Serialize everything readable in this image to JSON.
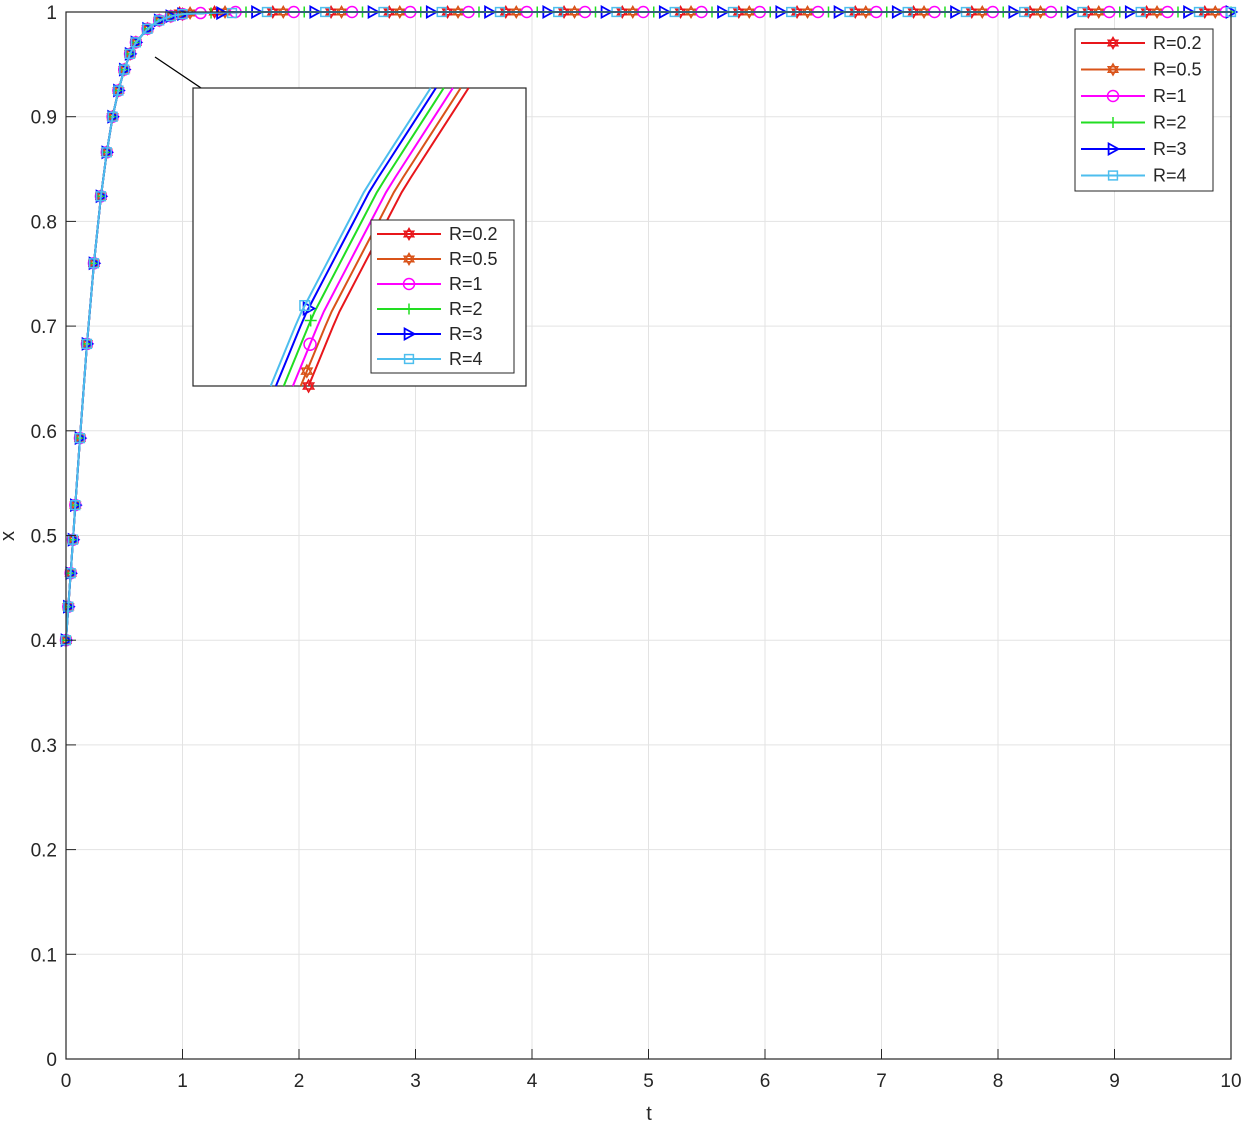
{
  "chart_data": {
    "type": "line",
    "title": "",
    "xlabel": "t",
    "ylabel": "x",
    "xlim": [
      0,
      10
    ],
    "ylim": [
      0,
      1
    ],
    "grid": true,
    "legend_position": "top-right",
    "xticks": [
      "0",
      "1",
      "2",
      "3",
      "4",
      "5",
      "6",
      "7",
      "8",
      "9",
      "10"
    ],
    "yticks": [
      "0",
      "0.1",
      "0.2",
      "0.3",
      "0.4",
      "0.5",
      "0.6",
      "0.7",
      "0.8",
      "0.9",
      "1"
    ],
    "t": [
      0,
      0.02,
      0.04,
      0.06,
      0.08,
      0.12,
      0.18,
      0.24,
      0.3,
      0.35,
      0.4,
      0.45,
      0.5,
      0.55,
      0.6,
      0.7,
      0.8,
      0.9,
      1.0,
      1.2,
      1.5,
      2,
      2.5,
      3,
      3.5,
      4,
      4.5,
      5,
      5.5,
      6,
      6.5,
      7,
      7.5,
      8,
      8.5,
      9,
      9.5,
      10
    ],
    "x": [
      0.4,
      0.432,
      0.464,
      0.496,
      0.529,
      0.593,
      0.683,
      0.76,
      0.824,
      0.866,
      0.9,
      0.925,
      0.945,
      0.96,
      0.971,
      0.984,
      0.992,
      0.996,
      0.998,
      0.999,
      1,
      1,
      1,
      1,
      1,
      1,
      1,
      1,
      1,
      1,
      1,
      1,
      1,
      1,
      1,
      1,
      1,
      1
    ],
    "series": [
      {
        "name": "R=0.2",
        "color": "#e8161b",
        "marker": "hexagram",
        "inset_t_shift": 0.016,
        "inset_marker_y": 0.8
      },
      {
        "name": "R=0.5",
        "color": "#d95319",
        "marker": "hexagram",
        "inset_t_shift": 0.01,
        "inset_marker_y": 0.805
      },
      {
        "name": "R=1",
        "color": "#ff00ff",
        "marker": "circle",
        "inset_t_shift": 0.004,
        "inset_marker_y": 0.814
      },
      {
        "name": "R=2",
        "color": "#22dd22",
        "marker": "plus",
        "inset_t_shift": -0.003,
        "inset_marker_y": 0.822
      },
      {
        "name": "R=3",
        "color": "#0000ff",
        "marker": "triangle-right",
        "inset_t_shift": -0.009,
        "inset_marker_y": 0.826
      },
      {
        "name": "R=4",
        "color": "#4dbeee",
        "marker": "square",
        "inset_t_shift": -0.013,
        "inset_marker_y": 0.827
      }
    ],
    "inset": {
      "xlim": [
        0.205,
        0.46
      ],
      "ylim": [
        0.8,
        0.9
      ]
    }
  }
}
